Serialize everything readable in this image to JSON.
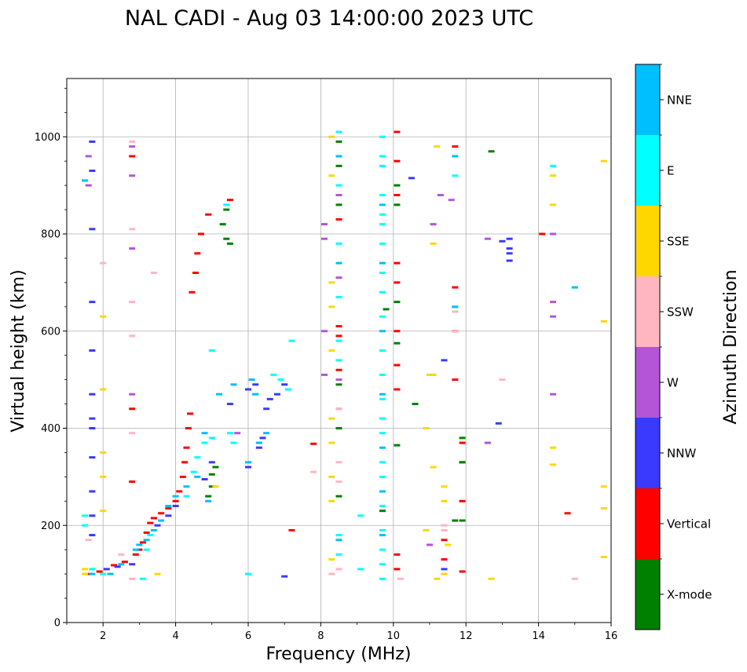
{
  "chart_data": {
    "type": "scatter",
    "title": "NAL CADI - Aug 03 14:00:00 2023 UTC",
    "xlabel": "Frequency (MHz)",
    "ylabel": "Virtual height (km)",
    "xlim": [
      1,
      16
    ],
    "ylim": [
      0,
      1120
    ],
    "xticks": [
      2,
      4,
      6,
      8,
      10,
      12,
      14,
      16
    ],
    "yticks": [
      0,
      200,
      400,
      600,
      800,
      1000
    ],
    "grid": true,
    "colorbar": {
      "title": "Azimuth Direction",
      "categories": [
        {
          "label": "X-mode",
          "color": "#008000"
        },
        {
          "label": "Vertical",
          "color": "#ff0000"
        },
        {
          "label": "NNW",
          "color": "#3a3aff"
        },
        {
          "label": "W",
          "color": "#b455d8"
        },
        {
          "label": "SSW",
          "color": "#ffb6c1"
        },
        {
          "label": "SSE",
          "color": "#ffd700"
        },
        {
          "label": "E",
          "color": "#00ffff"
        },
        {
          "label": "NNE",
          "color": "#00bfff"
        }
      ]
    },
    "series": [
      {
        "name": "Vertical",
        "points": [
          [
            1.6,
            100
          ],
          [
            1.9,
            105
          ],
          [
            2.3,
            118
          ],
          [
            2.6,
            125
          ],
          [
            2.9,
            140
          ],
          [
            3.0,
            150
          ],
          [
            3.1,
            165
          ],
          [
            3.2,
            185
          ],
          [
            3.3,
            205
          ],
          [
            3.4,
            215
          ],
          [
            3.6,
            225
          ],
          [
            3.8,
            235
          ],
          [
            4.0,
            250
          ],
          [
            4.1,
            270
          ],
          [
            4.2,
            300
          ],
          [
            4.25,
            330
          ],
          [
            4.3,
            360
          ],
          [
            4.35,
            400
          ],
          [
            4.4,
            430
          ],
          [
            4.45,
            680
          ],
          [
            4.55,
            720
          ],
          [
            4.6,
            760
          ],
          [
            4.7,
            800
          ],
          [
            4.9,
            840
          ],
          [
            5.5,
            870
          ],
          [
            8.5,
            610
          ],
          [
            8.5,
            830
          ],
          [
            8.5,
            590
          ],
          [
            8.5,
            520
          ],
          [
            10.1,
            1010
          ],
          [
            10.1,
            950
          ],
          [
            10.1,
            880
          ],
          [
            10.1,
            740
          ],
          [
            10.1,
            700
          ],
          [
            10.1,
            600
          ],
          [
            10.1,
            530
          ],
          [
            10.1,
            480
          ],
          [
            10.1,
            140
          ],
          [
            10.1,
            110
          ],
          [
            11.4,
            130
          ],
          [
            11.4,
            170
          ],
          [
            11.7,
            980
          ],
          [
            11.7,
            690
          ],
          [
            11.7,
            600
          ],
          [
            11.7,
            500
          ],
          [
            11.9,
            370
          ],
          [
            11.9,
            330
          ],
          [
            11.9,
            250
          ],
          [
            11.9,
            105
          ],
          [
            7.8,
            368
          ],
          [
            7.2,
            190
          ],
          [
            14.1,
            800
          ],
          [
            14.8,
            225
          ],
          [
            2.8,
            440
          ],
          [
            2.8,
            290
          ],
          [
            2.8,
            960
          ]
        ]
      },
      {
        "name": "X-mode",
        "points": [
          [
            4.9,
            260
          ],
          [
            5.0,
            280
          ],
          [
            5.0,
            305
          ],
          [
            5.1,
            320
          ],
          [
            5.3,
            820
          ],
          [
            5.4,
            790
          ],
          [
            5.5,
            780
          ],
          [
            5.4,
            850
          ],
          [
            8.5,
            940
          ],
          [
            8.5,
            860
          ],
          [
            8.5,
            490
          ],
          [
            8.5,
            400
          ],
          [
            8.5,
            260
          ],
          [
            8.5,
            990
          ],
          [
            9.7,
            230
          ],
          [
            9.8,
            645
          ],
          [
            10.1,
            900
          ],
          [
            10.1,
            860
          ],
          [
            10.1,
            660
          ],
          [
            10.1,
            575
          ],
          [
            10.1,
            365
          ],
          [
            11.9,
            380
          ],
          [
            11.9,
            330
          ],
          [
            11.9,
            210
          ],
          [
            12.7,
            970
          ],
          [
            10.6,
            450
          ],
          [
            11.7,
            210
          ]
        ]
      },
      {
        "name": "NNW",
        "points": [
          [
            1.7,
            990
          ],
          [
            1.7,
            930
          ],
          [
            1.7,
            810
          ],
          [
            1.7,
            660
          ],
          [
            1.7,
            560
          ],
          [
            1.7,
            470
          ],
          [
            1.7,
            420
          ],
          [
            1.7,
            400
          ],
          [
            1.7,
            340
          ],
          [
            1.7,
            270
          ],
          [
            1.7,
            220
          ],
          [
            1.7,
            180
          ],
          [
            2.1,
            110
          ],
          [
            2.4,
            115
          ],
          [
            2.8,
            120
          ],
          [
            3.5,
            200
          ],
          [
            3.8,
            220
          ],
          [
            4.0,
            240
          ],
          [
            4.8,
            295
          ],
          [
            5.0,
            330
          ],
          [
            5.5,
            450
          ],
          [
            6.0,
            480
          ],
          [
            6.2,
            490
          ],
          [
            6.5,
            440
          ],
          [
            6.6,
            460
          ],
          [
            6.8,
            470
          ],
          [
            7.0,
            490
          ],
          [
            6.4,
            380
          ],
          [
            6.3,
            360
          ],
          [
            6.0,
            320
          ],
          [
            13.2,
            790
          ],
          [
            13.2,
            770
          ],
          [
            13.2,
            760
          ],
          [
            13.2,
            745
          ],
          [
            10.5,
            915
          ],
          [
            11.4,
            540
          ],
          [
            12.9,
            410
          ],
          [
            11.4,
            110
          ],
          [
            7.0,
            95
          ],
          [
            13.0,
            785
          ]
        ]
      },
      {
        "name": "W",
        "points": [
          [
            1.6,
            960
          ],
          [
            1.6,
            900
          ],
          [
            2.8,
            980
          ],
          [
            2.8,
            920
          ],
          [
            2.8,
            770
          ],
          [
            2.8,
            470
          ],
          [
            5.7,
            390
          ],
          [
            8.1,
            820
          ],
          [
            8.1,
            790
          ],
          [
            8.1,
            600
          ],
          [
            8.1,
            510
          ],
          [
            8.5,
            880
          ],
          [
            8.5,
            710
          ],
          [
            8.5,
            500
          ],
          [
            8.5,
            440
          ],
          [
            11.0,
            160
          ],
          [
            11.1,
            820
          ],
          [
            11.3,
            880
          ],
          [
            12.6,
            370
          ],
          [
            12.6,
            790
          ],
          [
            14.4,
            800
          ],
          [
            14.4,
            660
          ],
          [
            14.4,
            630
          ],
          [
            14.4,
            470
          ],
          [
            11.6,
            870
          ]
        ]
      },
      {
        "name": "SSW",
        "points": [
          [
            1.6,
            170
          ],
          [
            2.0,
            740
          ],
          [
            2.5,
            140
          ],
          [
            2.8,
            990
          ],
          [
            2.8,
            810
          ],
          [
            2.8,
            660
          ],
          [
            2.8,
            590
          ],
          [
            2.8,
            390
          ],
          [
            2.8,
            90
          ],
          [
            3.4,
            720
          ],
          [
            7.8,
            310
          ],
          [
            8.5,
            110
          ],
          [
            8.5,
            330
          ],
          [
            8.5,
            290
          ],
          [
            8.5,
            440
          ],
          [
            11.4,
            190
          ],
          [
            11.4,
            200
          ],
          [
            11.7,
            640
          ],
          [
            11.7,
            600
          ],
          [
            13.0,
            500
          ],
          [
            10.2,
            90
          ],
          [
            15.0,
            90
          ],
          [
            8.3,
            100
          ]
        ]
      },
      {
        "name": "SSE",
        "points": [
          [
            1.5,
            100
          ],
          [
            1.5,
            110
          ],
          [
            2.0,
            630
          ],
          [
            2.0,
            480
          ],
          [
            2.0,
            350
          ],
          [
            2.0,
            300
          ],
          [
            2.0,
            230
          ],
          [
            2.0,
            100
          ],
          [
            3.5,
            100
          ],
          [
            5.1,
            280
          ],
          [
            8.3,
            1000
          ],
          [
            8.3,
            920
          ],
          [
            8.3,
            700
          ],
          [
            8.3,
            650
          ],
          [
            8.3,
            560
          ],
          [
            8.3,
            420
          ],
          [
            8.3,
            370
          ],
          [
            8.3,
            300
          ],
          [
            8.3,
            250
          ],
          [
            8.3,
            130
          ],
          [
            10.9,
            400
          ],
          [
            10.9,
            190
          ],
          [
            11.0,
            510
          ],
          [
            11.1,
            320
          ],
          [
            11.2,
            90
          ],
          [
            11.4,
            280
          ],
          [
            11.4,
            250
          ],
          [
            11.4,
            100
          ],
          [
            11.5,
            160
          ],
          [
            11.1,
            780
          ],
          [
            11.1,
            510
          ],
          [
            11.2,
            980
          ],
          [
            12.7,
            90
          ],
          [
            14.4,
            920
          ],
          [
            14.4,
            860
          ],
          [
            14.4,
            360
          ],
          [
            14.4,
            325
          ],
          [
            15.8,
            950
          ],
          [
            15.8,
            620
          ],
          [
            15.8,
            280
          ],
          [
            15.8,
            235
          ],
          [
            15.8,
            135
          ]
        ]
      },
      {
        "name": "E",
        "points": [
          [
            1.5,
            220
          ],
          [
            1.7,
            110
          ],
          [
            2.0,
            100
          ],
          [
            3.1,
            90
          ],
          [
            3.2,
            150
          ],
          [
            3.3,
            180
          ],
          [
            4.3,
            260
          ],
          [
            4.5,
            310
          ],
          [
            4.6,
            340
          ],
          [
            4.8,
            370
          ],
          [
            5.0,
            380
          ],
          [
            5.0,
            560
          ],
          [
            5.4,
            860
          ],
          [
            5.5,
            390
          ],
          [
            5.6,
            370
          ],
          [
            6.0,
            100
          ],
          [
            6.2,
            470
          ],
          [
            6.7,
            510
          ],
          [
            6.9,
            500
          ],
          [
            7.1,
            480
          ],
          [
            7.2,
            580
          ],
          [
            8.5,
            1010
          ],
          [
            8.5,
            900
          ],
          [
            8.5,
            780
          ],
          [
            8.5,
            670
          ],
          [
            8.5,
            580
          ],
          [
            8.5,
            540
          ],
          [
            8.5,
            180
          ],
          [
            8.5,
            140
          ],
          [
            9.1,
            220
          ],
          [
            9.1,
            110
          ],
          [
            9.7,
            1000
          ],
          [
            9.7,
            960
          ],
          [
            9.7,
            940
          ],
          [
            9.7,
            880
          ],
          [
            9.7,
            840
          ],
          [
            9.7,
            820
          ],
          [
            9.7,
            780
          ],
          [
            9.7,
            720
          ],
          [
            9.7,
            680
          ],
          [
            9.7,
            630
          ],
          [
            9.7,
            560
          ],
          [
            9.7,
            510
          ],
          [
            9.7,
            460
          ],
          [
            9.7,
            420
          ],
          [
            9.7,
            390
          ],
          [
            9.7,
            330
          ],
          [
            9.7,
            300
          ],
          [
            9.7,
            240
          ],
          [
            9.7,
            190
          ],
          [
            9.7,
            150
          ],
          [
            9.7,
            120
          ],
          [
            9.7,
            90
          ],
          [
            11.7,
            960
          ],
          [
            11.7,
            920
          ],
          [
            11.7,
            650
          ],
          [
            14.4,
            940
          ],
          [
            15.0,
            690
          ],
          [
            1.5,
            200
          ]
        ]
      },
      {
        "name": "NNE",
        "points": [
          [
            1.5,
            910
          ],
          [
            1.7,
            100
          ],
          [
            2.2,
            100
          ],
          [
            2.5,
            120
          ],
          [
            2.9,
            150
          ],
          [
            3.0,
            160
          ],
          [
            3.2,
            170
          ],
          [
            3.4,
            190
          ],
          [
            3.6,
            210
          ],
          [
            3.8,
            240
          ],
          [
            4.0,
            260
          ],
          [
            4.3,
            280
          ],
          [
            4.6,
            300
          ],
          [
            4.9,
            250
          ],
          [
            5.2,
            470
          ],
          [
            5.6,
            490
          ],
          [
            6.1,
            500
          ],
          [
            6.2,
            470
          ],
          [
            6.5,
            390
          ],
          [
            6.3,
            370
          ],
          [
            6.0,
            330
          ],
          [
            8.5,
            960
          ],
          [
            8.5,
            740
          ],
          [
            8.5,
            170
          ],
          [
            9.7,
            860
          ],
          [
            9.7,
            740
          ],
          [
            9.7,
            600
          ],
          [
            9.7,
            470
          ],
          [
            9.7,
            360
          ],
          [
            9.7,
            270
          ],
          [
            9.7,
            180
          ],
          [
            11.7,
            960
          ],
          [
            11.7,
            650
          ],
          [
            15.0,
            690
          ],
          [
            4.8,
            390
          ]
        ]
      }
    ]
  }
}
